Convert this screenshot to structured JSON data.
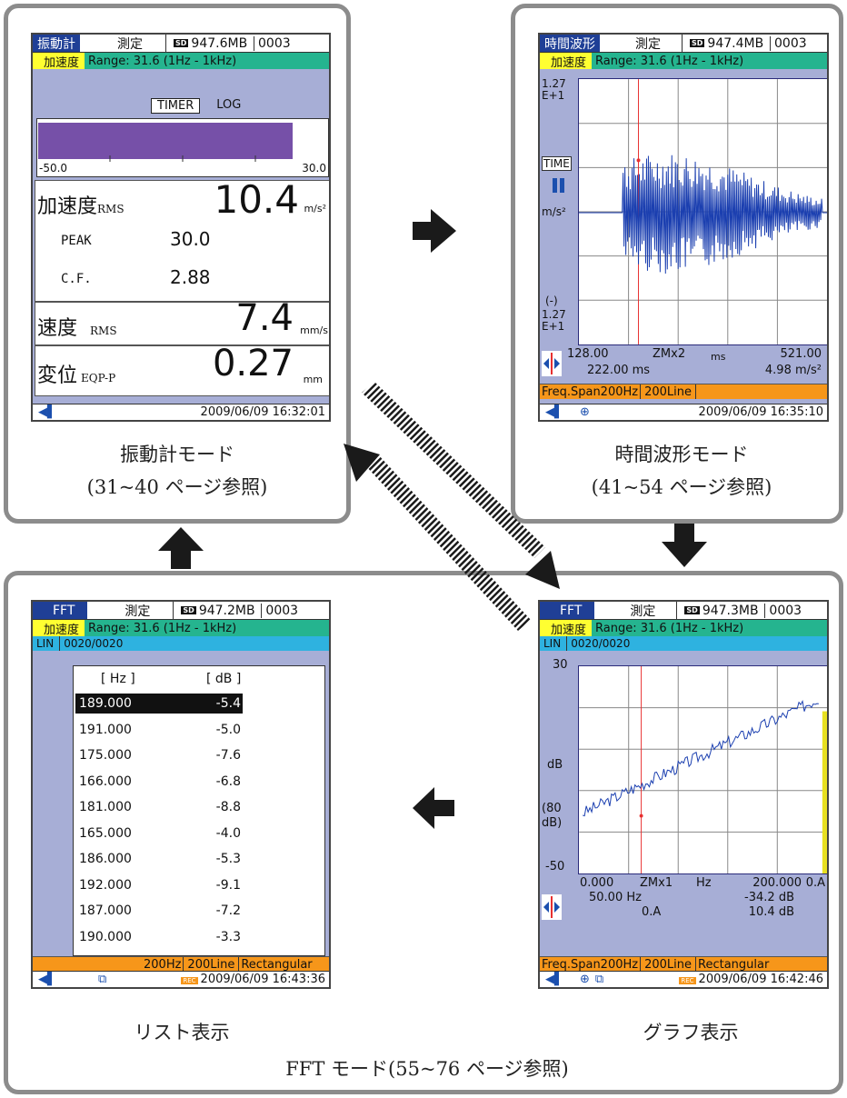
{
  "captions": {
    "vib": [
      "振動計モード",
      "(31~40 ページ参照)"
    ],
    "time": [
      "時間波形モード",
      "(41~54 ページ参照)"
    ],
    "list": "リスト表示",
    "graph": "グラフ表示",
    "fft": "FFT モード(55~76 ページ参照)"
  },
  "common": {
    "measure_label": "測定",
    "sd_icon": "SD",
    "file_no": "0003",
    "quantity": "加速度",
    "range_text": "Range:  31.6 (1Hz - 1kHz)",
    "lin_label": "LIN",
    "lin_count": "0020/0020",
    "battery_icon": "battery-icon",
    "rec_icon": "REC"
  },
  "vib": {
    "mode": "振動計",
    "sd": "947.6MB",
    "timer": "TIMER",
    "log": "LOG",
    "bar_value_fraction": 0.88,
    "bar_color": "#7650a8",
    "scale_min": "-50.0",
    "scale_max": "30.0",
    "acc_label": "加速度",
    "acc_sub": "RMS",
    "acc_value": "10.4",
    "acc_unit": "m/s²",
    "peak_label": "PEAK",
    "peak_value": "30.0",
    "cf_label": "C.F.",
    "cf_value": "2.88",
    "vel_label": "速度",
    "vel_sub": "RMS",
    "vel_value": "7.4",
    "vel_unit": "mm/s",
    "disp_label": "変位",
    "disp_sub": "EQP-P",
    "disp_value": "0.27",
    "disp_unit": "mm",
    "datetime": "2009/06/09 16:32:01"
  },
  "time": {
    "mode": "時間波形",
    "sd": "947.4MB",
    "ytop": "1.27\nE+1",
    "time_icon": "TIME",
    "pause_icon": "pause-icon",
    "yunit": "m/s²",
    "yneg": "(-)",
    "ybot": "1.27\nE+1",
    "x_start": "128.00",
    "zoom": "ZMx2",
    "x_unit": "ms",
    "x_end": "521.00",
    "cursor_x": "222.00 ms",
    "cursor_y": "4.98 m/s²",
    "freq_span": "Freq.Span200Hz",
    "lines": "200Line",
    "datetime": "2009/06/09 16:35:10"
  },
  "list": {
    "mode": "FFT",
    "sd": "947.2MB",
    "col_hz": "[  Hz  ]",
    "col_db": "[   dB   ]",
    "rows": [
      [
        "189.000",
        "-5.4"
      ],
      [
        "191.000",
        "-5.0"
      ],
      [
        "175.000",
        "-7.6"
      ],
      [
        "166.000",
        "-6.8"
      ],
      [
        "181.000",
        "-8.8"
      ],
      [
        "165.000",
        "-4.0"
      ],
      [
        "186.000",
        "-5.3"
      ],
      [
        "192.000",
        "-9.1"
      ],
      [
        "187.000",
        "-7.2"
      ],
      [
        "190.000",
        "-3.3"
      ]
    ],
    "span": "200Hz",
    "lines": "200Line",
    "window": "Rectangular",
    "datetime": "2009/06/09 16:43:36"
  },
  "graph": {
    "mode": "FFT",
    "sd": "947.3MB",
    "ytop": "30",
    "yunit": "dB",
    "yref": "(80\ndB)",
    "ybot": "-50",
    "x_start": "0.000",
    "zoom": "ZMx1",
    "x_unit": "Hz",
    "x_end": "200.000",
    "oa": "0.A",
    "cursor_hz": "50.00  Hz",
    "cursor_db": "-34.2 dB",
    "oa2": "0.A",
    "oa_db": "10.4 dB",
    "freq_span": "Freq.Span200Hz",
    "lines": "200Line",
    "window": "Rectangular",
    "datetime": "2009/06/09 16:42:46"
  }
}
